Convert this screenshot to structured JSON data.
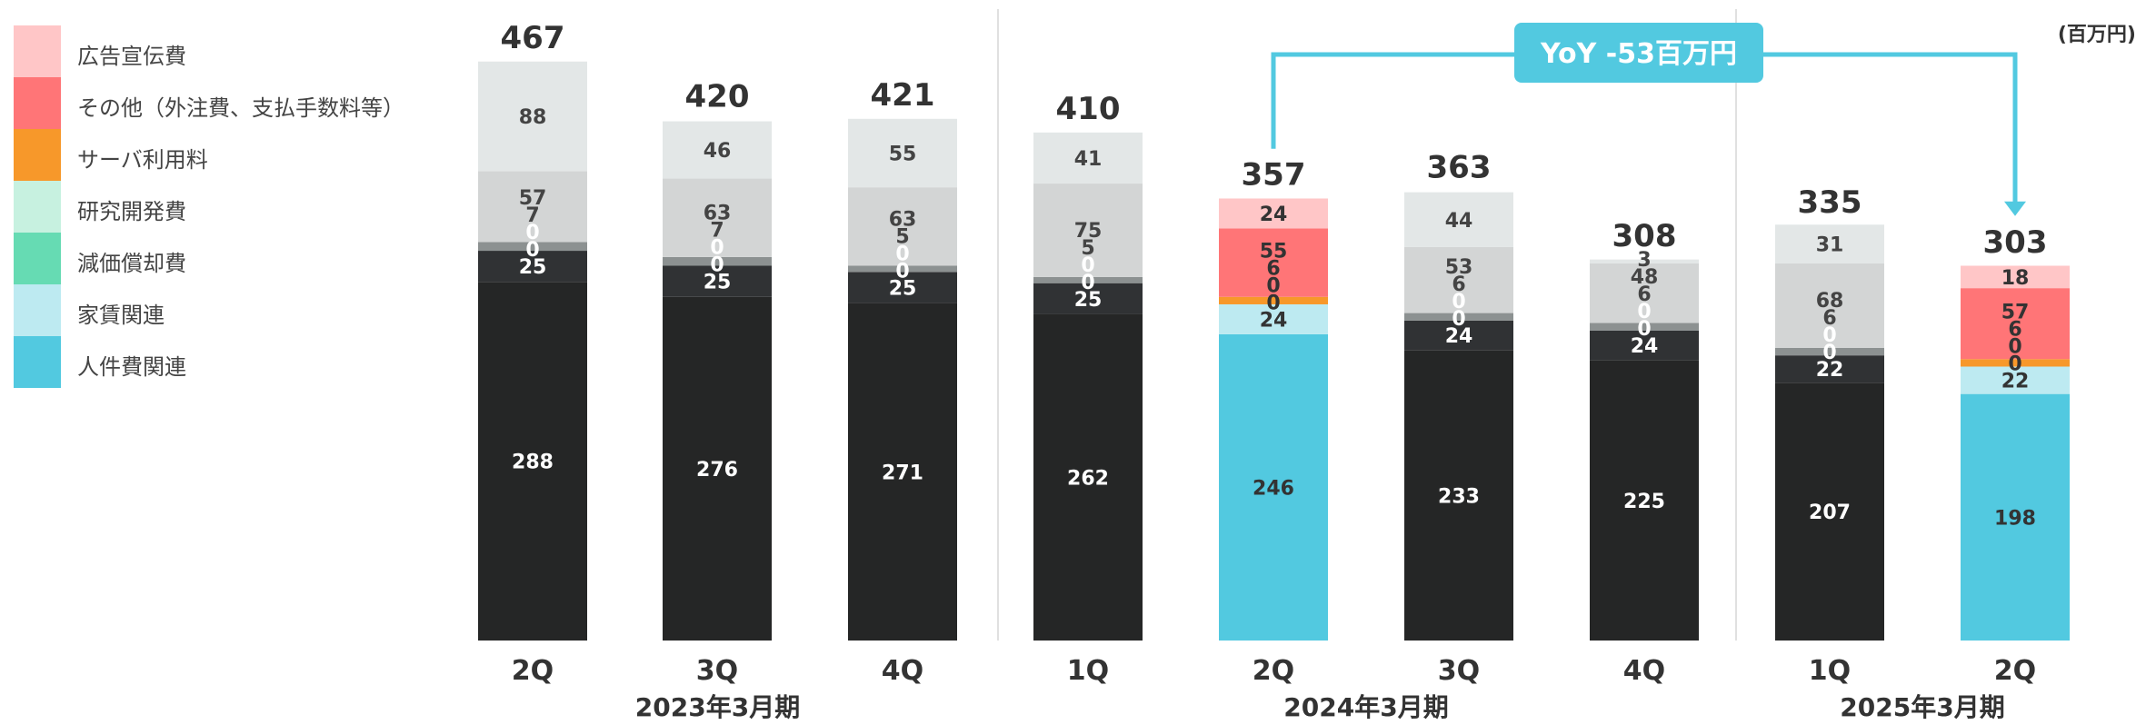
{
  "unit_label": "(百万円)",
  "yoy_label": "YoY -53百万円",
  "chart_data": {
    "type": "bar",
    "stacked": true,
    "categories": [
      "2Q",
      "3Q",
      "4Q",
      "1Q",
      "2Q",
      "3Q",
      "4Q",
      "1Q",
      "2Q"
    ],
    "groups": [
      {
        "label": "2023年3月期",
        "start": 0,
        "end": 2
      },
      {
        "label": "2024年3月期",
        "start": 3,
        "end": 6
      },
      {
        "label": "2025年3月期",
        "start": 7,
        "end": 8
      }
    ],
    "totals": [
      467,
      420,
      421,
      410,
      357,
      363,
      308,
      335,
      303
    ],
    "highlighted": [
      4,
      8
    ],
    "series": [
      {
        "name": "人件費関連",
        "color": "#52c9e0",
        "values": [
          288,
          276,
          271,
          262,
          246,
          233,
          225,
          207,
          198
        ]
      },
      {
        "name": "家賃関連",
        "color": "#bdeaf1",
        "values": [
          25,
          25,
          25,
          25,
          24,
          24,
          24,
          22,
          22
        ]
      },
      {
        "name": "減価償却費",
        "color": "#66dbb3",
        "values": [
          0,
          0,
          0,
          0,
          0,
          0,
          0,
          0,
          0
        ]
      },
      {
        "name": "研究開発費",
        "color": "#c7f1e0",
        "values": [
          0,
          0,
          0,
          0,
          0,
          0,
          0,
          0,
          0
        ]
      },
      {
        "name": "サーバ利用料",
        "color": "#f7982a",
        "values": [
          7,
          7,
          5,
          5,
          6,
          6,
          6,
          6,
          6
        ]
      },
      {
        "name": "その他（外注費、支払手数料等）",
        "color": "#ff7577",
        "values": [
          57,
          63,
          63,
          75,
          55,
          53,
          48,
          68,
          57
        ]
      },
      {
        "name": "広告宣伝費",
        "color": "#ffc6c7",
        "values": [
          88,
          46,
          55,
          41,
          24,
          44,
          3,
          31,
          18
        ]
      }
    ],
    "grey_colors": [
      "#252626",
      "#303234",
      "#555858",
      "#6f7373",
      "#8c9191",
      "#d3d5d5",
      "#e3e7e7"
    ],
    "legend_order": [
      6,
      5,
      4,
      3,
      2,
      1,
      0
    ],
    "ylim": [
      0,
      470
    ]
  }
}
